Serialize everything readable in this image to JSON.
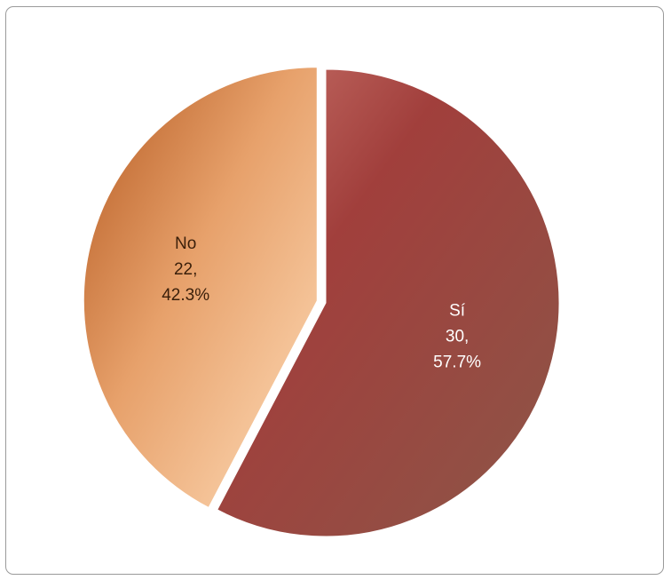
{
  "chart_data": {
    "type": "pie",
    "title": "",
    "slices": [
      {
        "name": "Sí",
        "value": 30,
        "value_label": "30,",
        "percent_label": "57.7%",
        "color": "#9c4440",
        "text_color": "#ffffff"
      },
      {
        "name": "No",
        "value": 22,
        "value_label": "22,",
        "percent_label": "42.3%",
        "color": "#e9a066",
        "text_color": "#3a1f0a"
      }
    ],
    "start_angle_deg": 0,
    "direction": "clockwise",
    "exploded_slice": "No",
    "legend": "none"
  }
}
